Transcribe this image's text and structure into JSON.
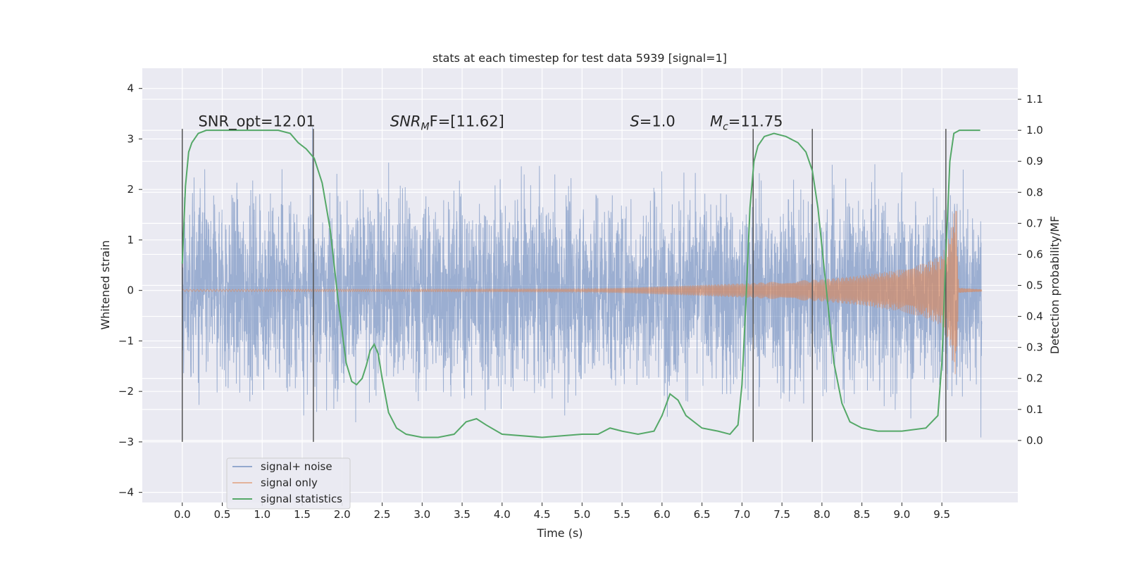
{
  "chart_data": {
    "type": "line",
    "title": "stats at each timestep for test data 5939 [signal=1]",
    "xlabel": "Time (s)",
    "ylabel": "Whitened strain",
    "y2label": "Detection probability/MF",
    "xlim": [
      -0.5,
      10.45
    ],
    "ylim": [
      -4.2,
      4.4
    ],
    "y2lim": [
      -0.2,
      1.2
    ],
    "x_ticks": [
      "0.0",
      "0.5",
      "1.0",
      "1.5",
      "2.0",
      "2.5",
      "3.0",
      "3.5",
      "4.0",
      "4.5",
      "5.0",
      "5.5",
      "6.0",
      "6.5",
      "7.0",
      "7.5",
      "8.0",
      "8.5",
      "9.0",
      "9.5"
    ],
    "y_ticks": [
      "4",
      "3",
      "2",
      "1",
      "0",
      "−1",
      "−2",
      "−3",
      "−4"
    ],
    "y2_ticks": [
      "1.1",
      "1.0",
      "0.9",
      "0.8",
      "0.7",
      "0.6",
      "0.5",
      "0.4",
      "0.3",
      "0.2",
      "0.1",
      "0.0"
    ],
    "grid": true,
    "legend_position": "lower-left",
    "annotations": [
      {
        "text": "SNR_opt=12.01",
        "x": 0.2,
        "y": 3.25
      },
      {
        "main": "SNR",
        "sub": "M",
        "rest": "F=[11.62]",
        "x": 2.6,
        "y": 3.25
      },
      {
        "main": "S",
        "rest": "=1.0",
        "x": 5.6,
        "y": 3.25
      },
      {
        "main": "M",
        "sub": "c",
        "rest": "=11.75",
        "x": 6.6,
        "y": 3.25
      }
    ],
    "vlines": [
      {
        "x": 0.0,
        "y1": -3.0,
        "y2": 3.2
      },
      {
        "x": 1.64,
        "y1": -3.0,
        "y2": 3.2
      },
      {
        "x": 7.14,
        "y1": -3.0,
        "y2": 3.2
      },
      {
        "x": 7.88,
        "y1": -3.0,
        "y2": 3.2
      },
      {
        "x": 9.55,
        "y1": -3.0,
        "y2": 3.2
      }
    ],
    "series": [
      {
        "name": "signal+ noise",
        "color": "#4c72b0",
        "typical_amplitude": 1.3,
        "x_range": [
          0.0,
          10.0
        ]
      },
      {
        "name": "signal only",
        "color": "#dd8452",
        "x_range": [
          0.0,
          10.0
        ],
        "envelope": [
          [
            0,
            0.02
          ],
          [
            5.0,
            0.03
          ],
          [
            5.5,
            0.05
          ],
          [
            6.0,
            0.08
          ],
          [
            6.5,
            0.11
          ],
          [
            7.0,
            0.14
          ],
          [
            7.5,
            0.18
          ],
          [
            8.0,
            0.22
          ],
          [
            8.5,
            0.3
          ],
          [
            9.0,
            0.42
          ],
          [
            9.3,
            0.55
          ],
          [
            9.5,
            0.7
          ],
          [
            9.6,
            1.1
          ],
          [
            9.68,
            1.8
          ],
          [
            9.71,
            0.05
          ],
          [
            10.0,
            0.02
          ]
        ]
      },
      {
        "name": "signal statistics",
        "color": "#55a868",
        "axis": "right",
        "x": [
          0.0,
          0.04,
          0.08,
          0.12,
          0.2,
          0.3,
          0.5,
          0.8,
          1.0,
          1.2,
          1.35,
          1.45,
          1.55,
          1.65,
          1.75,
          1.85,
          1.95,
          2.05,
          2.12,
          2.18,
          2.25,
          2.3,
          2.35,
          2.4,
          2.45,
          2.5,
          2.58,
          2.68,
          2.8,
          3.0,
          3.2,
          3.4,
          3.55,
          3.68,
          3.8,
          4.0,
          4.5,
          5.0,
          5.2,
          5.35,
          5.5,
          5.7,
          5.9,
          6.0,
          6.1,
          6.2,
          6.3,
          6.5,
          6.7,
          6.85,
          6.95,
          7.0,
          7.05,
          7.1,
          7.15,
          7.2,
          7.28,
          7.4,
          7.55,
          7.7,
          7.8,
          7.88,
          7.95,
          8.05,
          8.15,
          8.25,
          8.35,
          8.5,
          8.7,
          9.0,
          9.3,
          9.45,
          9.5,
          9.55,
          9.6,
          9.65,
          9.72,
          9.8,
          9.98
        ],
        "values": [
          0.57,
          0.82,
          0.93,
          0.96,
          0.99,
          1.0,
          1.0,
          1.0,
          1.0,
          1.0,
          0.99,
          0.96,
          0.94,
          0.91,
          0.83,
          0.68,
          0.45,
          0.25,
          0.19,
          0.18,
          0.2,
          0.24,
          0.29,
          0.31,
          0.28,
          0.2,
          0.09,
          0.04,
          0.02,
          0.01,
          0.01,
          0.02,
          0.06,
          0.07,
          0.05,
          0.02,
          0.01,
          0.02,
          0.02,
          0.04,
          0.03,
          0.02,
          0.03,
          0.08,
          0.15,
          0.13,
          0.08,
          0.04,
          0.03,
          0.02,
          0.05,
          0.18,
          0.45,
          0.75,
          0.9,
          0.95,
          0.98,
          0.99,
          0.98,
          0.96,
          0.93,
          0.87,
          0.75,
          0.5,
          0.25,
          0.12,
          0.06,
          0.04,
          0.03,
          0.03,
          0.04,
          0.08,
          0.25,
          0.6,
          0.9,
          0.99,
          1.0,
          1.0,
          1.0
        ]
      }
    ]
  }
}
